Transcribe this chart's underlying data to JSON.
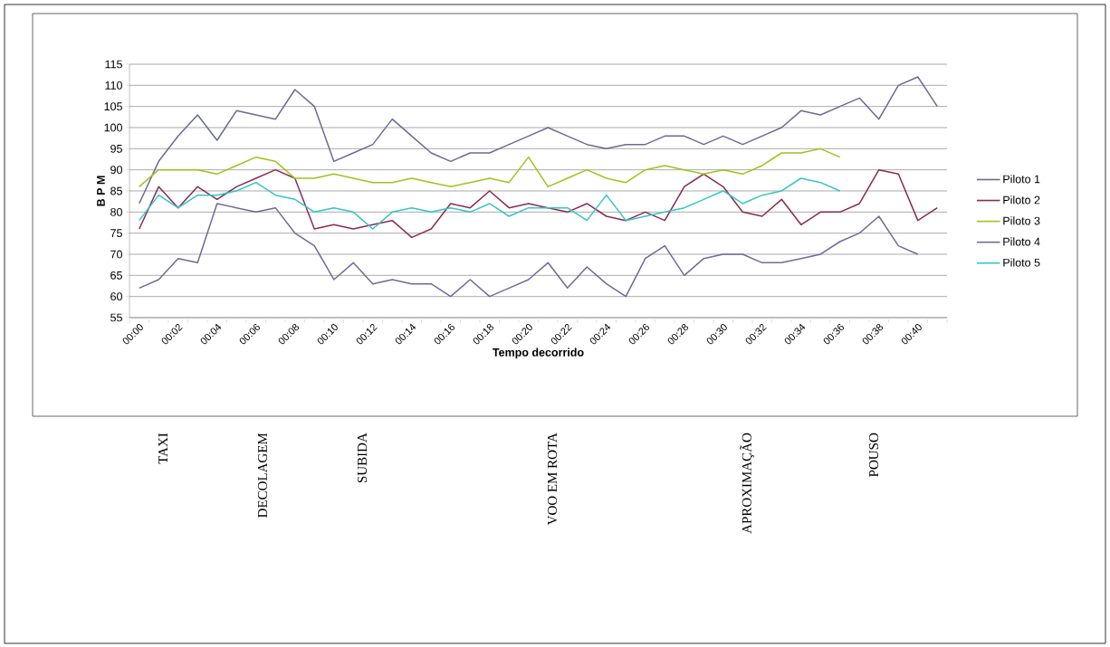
{
  "chart_data": {
    "type": "line",
    "xlabel": "Tempo decorrido",
    "ylabel": "B P M",
    "categories": [
      "00:00",
      null,
      "00:02",
      null,
      "00:04",
      null,
      "00:06",
      null,
      "00:08",
      null,
      "00:10",
      null,
      "00:12",
      null,
      "00:14",
      null,
      "00:16",
      null,
      "00:18",
      null,
      "00:20",
      null,
      "00:22",
      null,
      "00:24",
      null,
      "00:26",
      null,
      "00:28",
      null,
      "00:30",
      null,
      "00:32",
      null,
      "00:34",
      null,
      "00:36",
      null,
      "00:38",
      null,
      "00:40",
      null
    ],
    "series": [
      {
        "name": "Piloto 1",
        "color": "#6a6a96",
        "values": [
          82,
          92,
          98,
          103,
          97,
          104,
          103,
          102,
          109,
          105,
          92,
          94,
          96,
          102,
          98,
          94,
          92,
          94,
          94,
          96,
          98,
          100,
          98,
          96,
          95,
          96,
          96,
          98,
          98,
          96,
          98,
          96,
          98,
          100,
          104,
          103,
          105,
          107,
          102,
          110,
          112,
          105
        ]
      },
      {
        "name": "Piloto 2",
        "color": "#8b2a52",
        "values": [
          76,
          86,
          81,
          86,
          83,
          86,
          88,
          90,
          88,
          76,
          77,
          76,
          77,
          78,
          74,
          76,
          82,
          81,
          85,
          81,
          82,
          81,
          80,
          82,
          79,
          78,
          80,
          78,
          86,
          89,
          86,
          80,
          79,
          83,
          77,
          80,
          80,
          82,
          90,
          89,
          78,
          81
        ]
      },
      {
        "name": "Piloto 3",
        "color": "#9dc41a",
        "values": [
          86,
          90,
          90,
          90,
          89,
          91,
          93,
          92,
          88,
          88,
          89,
          88,
          87,
          87,
          88,
          87,
          86,
          87,
          88,
          87,
          93,
          86,
          88,
          90,
          88,
          87,
          90,
          91,
          90,
          89,
          90,
          89,
          91,
          94,
          94,
          95,
          93,
          null,
          null,
          null,
          null,
          null
        ]
      },
      {
        "name": "Piloto 4",
        "color": "#6f6a9a",
        "values": [
          62,
          64,
          69,
          68,
          82,
          81,
          80,
          81,
          75,
          72,
          64,
          68,
          63,
          64,
          63,
          63,
          60,
          64,
          60,
          62,
          64,
          68,
          62,
          67,
          63,
          60,
          69,
          72,
          65,
          69,
          70,
          70,
          68,
          68,
          69,
          70,
          73,
          75,
          79,
          72,
          70,
          null
        ]
      },
      {
        "name": "Piloto 5",
        "color": "#33c6c6",
        "values": [
          78,
          84,
          81,
          84,
          84,
          85,
          87,
          84,
          83,
          80,
          81,
          80,
          76,
          80,
          81,
          80,
          81,
          80,
          82,
          79,
          81,
          81,
          81,
          78,
          84,
          78,
          79,
          80,
          81,
          83,
          85,
          82,
          84,
          85,
          88,
          87,
          85,
          null,
          null,
          null,
          null,
          null
        ]
      }
    ],
    "ylim": [
      55,
      115
    ],
    "yticks": [
      55,
      60,
      65,
      70,
      75,
      80,
      85,
      90,
      95,
      100,
      105,
      110,
      115
    ],
    "grid": "y",
    "legend": "right",
    "marker": "none",
    "line_style": "solid",
    "annotations": [
      "TAXI",
      "DECOLAGEM",
      "SUBIDA",
      "VOO EM ROTA",
      "APROXIMAÇÃO",
      "POUSO"
    ]
  }
}
